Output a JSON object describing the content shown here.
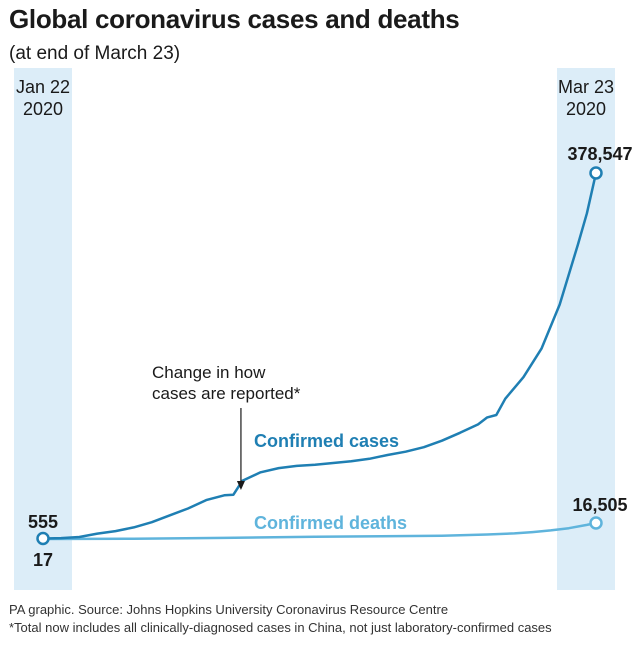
{
  "chart_data": {
    "type": "line",
    "title": "Global coronavirus cases and deaths",
    "subtitle": "(at end of March 23)",
    "x_range": [
      "2020-01-22",
      "2020-03-23"
    ],
    "start_label": [
      "Jan 22",
      "2020"
    ],
    "end_label": [
      "Mar 23",
      "2020"
    ],
    "ylim": [
      0,
      400000
    ],
    "grid": false,
    "series": [
      {
        "name": "Confirmed cases",
        "color": "#1f7fb3",
        "start_value_label": "555",
        "end_value_label": "378,547",
        "points": [
          [
            "2020-01-22",
            555
          ],
          [
            "2020-01-24",
            900
          ],
          [
            "2020-01-26",
            2100
          ],
          [
            "2020-01-28",
            5600
          ],
          [
            "2020-01-30",
            8200
          ],
          [
            "2020-02-01",
            12000
          ],
          [
            "2020-02-03",
            17400
          ],
          [
            "2020-02-05",
            24500
          ],
          [
            "2020-02-07",
            31500
          ],
          [
            "2020-02-09",
            40200
          ],
          [
            "2020-02-11",
            45200
          ],
          [
            "2020-02-12",
            45800
          ],
          [
            "2020-02-13",
            60300
          ],
          [
            "2020-02-15",
            69000
          ],
          [
            "2020-02-17",
            73300
          ],
          [
            "2020-02-19",
            75600
          ],
          [
            "2020-02-21",
            76800
          ],
          [
            "2020-02-23",
            78600
          ],
          [
            "2020-02-25",
            80400
          ],
          [
            "2020-02-27",
            83000
          ],
          [
            "2020-02-29",
            86900
          ],
          [
            "2020-03-02",
            90300
          ],
          [
            "2020-03-04",
            94900
          ],
          [
            "2020-03-06",
            101700
          ],
          [
            "2020-03-08",
            109800
          ],
          [
            "2020-03-10",
            118500
          ],
          [
            "2020-03-11",
            125800
          ],
          [
            "2020-03-12",
            128300
          ],
          [
            "2020-03-13",
            145100
          ],
          [
            "2020-03-15",
            167400
          ],
          [
            "2020-03-17",
            197100
          ],
          [
            "2020-03-19",
            242500
          ],
          [
            "2020-03-21",
            304500
          ],
          [
            "2020-03-22",
            336900
          ],
          [
            "2020-03-23",
            378547
          ]
        ]
      },
      {
        "name": "Confirmed deaths",
        "color": "#5fb4dc",
        "start_value_label": "17",
        "end_value_label": "16,505",
        "points": [
          [
            "2020-01-22",
            17
          ],
          [
            "2020-02-01",
            259
          ],
          [
            "2020-02-11",
            1113
          ],
          [
            "2020-02-21",
            2251
          ],
          [
            "2020-03-01",
            3000
          ],
          [
            "2020-03-06",
            3460
          ],
          [
            "2020-03-11",
            4615
          ],
          [
            "2020-03-14",
            5800
          ],
          [
            "2020-03-16",
            7100
          ],
          [
            "2020-03-18",
            8900
          ],
          [
            "2020-03-20",
            11200
          ],
          [
            "2020-03-22",
            14600
          ],
          [
            "2020-03-23",
            16505
          ]
        ]
      }
    ],
    "annotation": {
      "lines": [
        "Change in how",
        "cases are reported*"
      ],
      "date": "2020-02-13"
    }
  },
  "footer": {
    "source": "PA graphic. Source: Johns Hopkins University Coronavirus Resource Centre",
    "note": "*Total now includes all clinically-diagnosed cases in China, not just laboratory-confirmed cases"
  },
  "colors": {
    "band": "#dcedf8",
    "cases": "#1f7fb3",
    "deaths": "#5fb4dc",
    "text": "#1a1a1a"
  }
}
